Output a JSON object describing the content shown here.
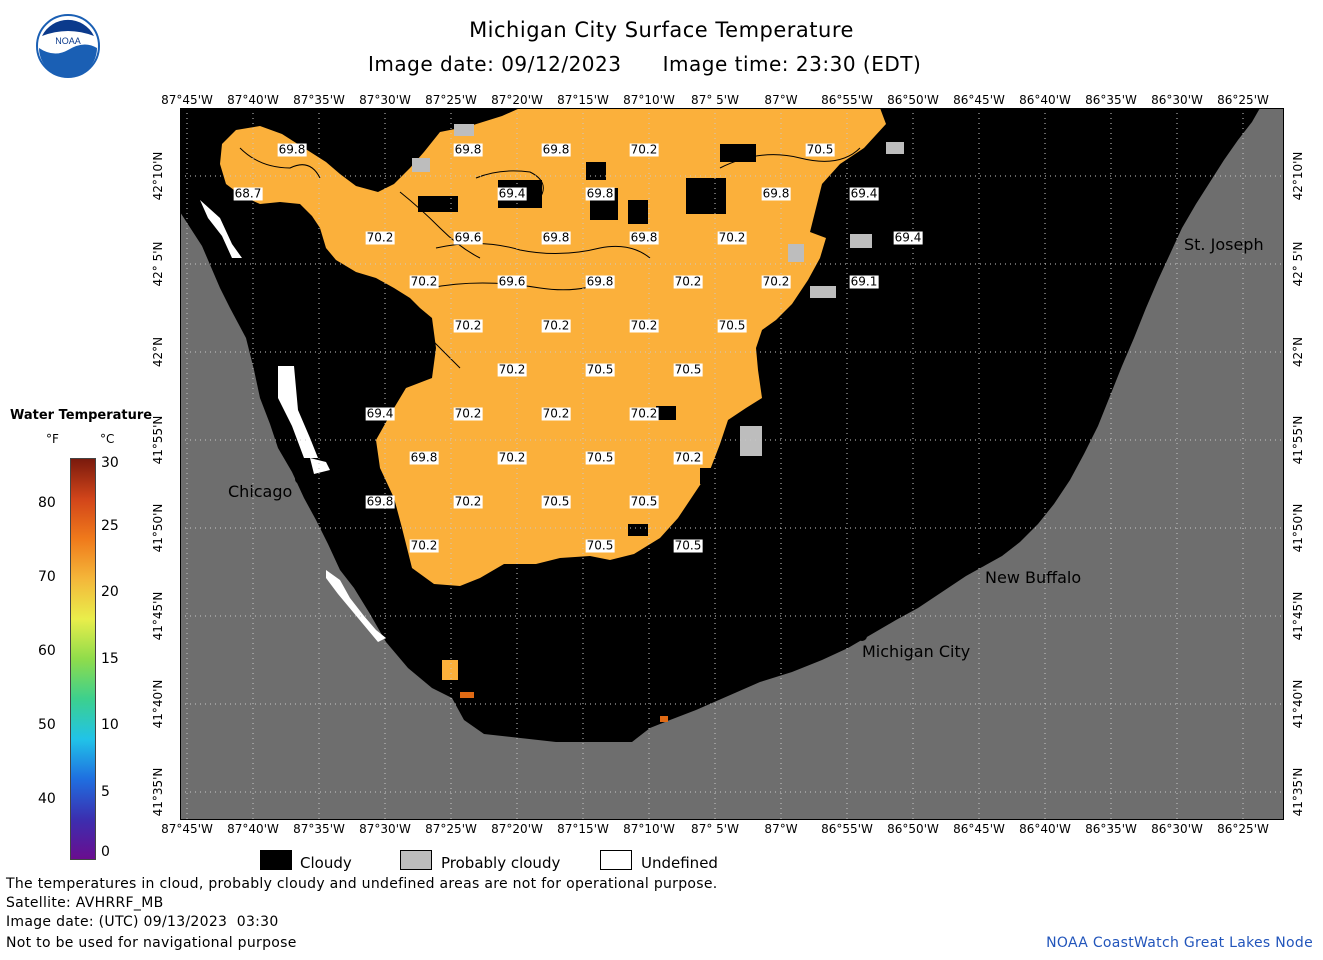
{
  "header": {
    "title": "Michigan City Surface Temperature",
    "image_date": "Image date: 09/12/2023",
    "image_time": "Image time: 23:30 (EDT)"
  },
  "logo": {
    "text": "NOAA"
  },
  "axes": {
    "lon_ticks": [
      "87°45'W",
      "87°40'W",
      "87°35'W",
      "87°30'W",
      "87°25'W",
      "87°20'W",
      "87°15'W",
      "87°10'W",
      "87° 5'W",
      "87°W",
      "86°55'W",
      "86°50'W",
      "86°45'W",
      "86°40'W",
      "86°35'W",
      "86°30'W",
      "86°25'W"
    ],
    "lat_ticks": [
      "42°10'N",
      "42° 5'N",
      "42°N",
      "41°55'N",
      "41°50'N",
      "41°45'N",
      "41°40'N",
      "41°35'N"
    ]
  },
  "cities": {
    "chicago": "Chicago",
    "st_joseph": "St. Joseph",
    "new_buffalo": "New Buffalo",
    "michigan_city": "Michigan City"
  },
  "temperature_labels": [
    "69.8",
    "69.8",
    "69.8",
    "70.2",
    "70.5",
    "68.7",
    "69.4",
    "69.8",
    "69.8",
    "69.4",
    "70.2",
    "69.6",
    "69.8",
    "69.8",
    "70.2",
    "69.4",
    "70.2",
    "69.6",
    "69.8",
    "70.2",
    "70.2",
    "69.1",
    "70.2",
    "70.2",
    "70.2",
    "70.5",
    "70.2",
    "70.5",
    "70.5",
    "69.4",
    "70.2",
    "70.2",
    "70.2",
    "69.8",
    "70.2",
    "70.5",
    "70.2",
    "69.8",
    "70.2",
    "70.5",
    "70.5",
    "70.2",
    "70.5",
    "70.5"
  ],
  "colorbar": {
    "title": "Water Temperature",
    "unit_f": "°F",
    "unit_c": "°C",
    "f_ticks": [
      "80",
      "70",
      "60",
      "50",
      "40"
    ],
    "c_ticks": [
      "30",
      "25",
      "20",
      "15",
      "10",
      "5",
      "0"
    ]
  },
  "legend": {
    "cloudy": "Cloudy",
    "probably_cloudy": "Probably cloudy",
    "undefined": "Undefined",
    "colors": {
      "cloudy": "#000000",
      "probably_cloudy": "#bdbdbd",
      "undefined": "#ffffff",
      "land": "#6e6e6e",
      "water_temp": "#fbb03b"
    }
  },
  "footer": {
    "disclaimer": "The temperatures in cloud, probably cloudy and undefined areas are not for operational purpose.",
    "satellite": "Satellite: AVHRRF_MB",
    "utc_date": "Image date: (UTC) 09/13/2023  03:30",
    "nav_warning": "Not to be used for navigational purpose",
    "credit": "NOAA CoastWatch Great Lakes Node"
  }
}
